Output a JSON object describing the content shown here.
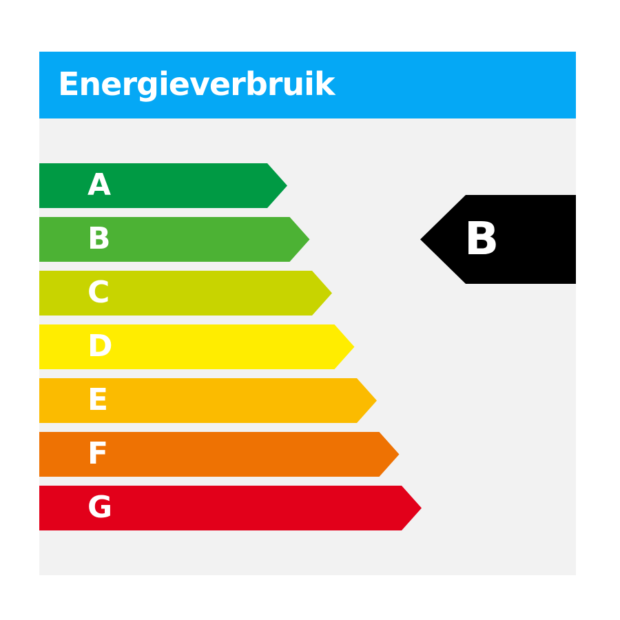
{
  "header": {
    "title": "Energieverbruik",
    "color": "#05a8f5"
  },
  "scale": [
    {
      "label": "A",
      "color": "#009a44"
    },
    {
      "label": "B",
      "color": "#4cb234"
    },
    {
      "label": "C",
      "color": "#c8d400"
    },
    {
      "label": "D",
      "color": "#ffed00"
    },
    {
      "label": "E",
      "color": "#fbbb00"
    },
    {
      "label": "F",
      "color": "#ee7203"
    },
    {
      "label": "G",
      "color": "#e2001a"
    }
  ],
  "rating": {
    "label": "B",
    "color": "#000000"
  }
}
